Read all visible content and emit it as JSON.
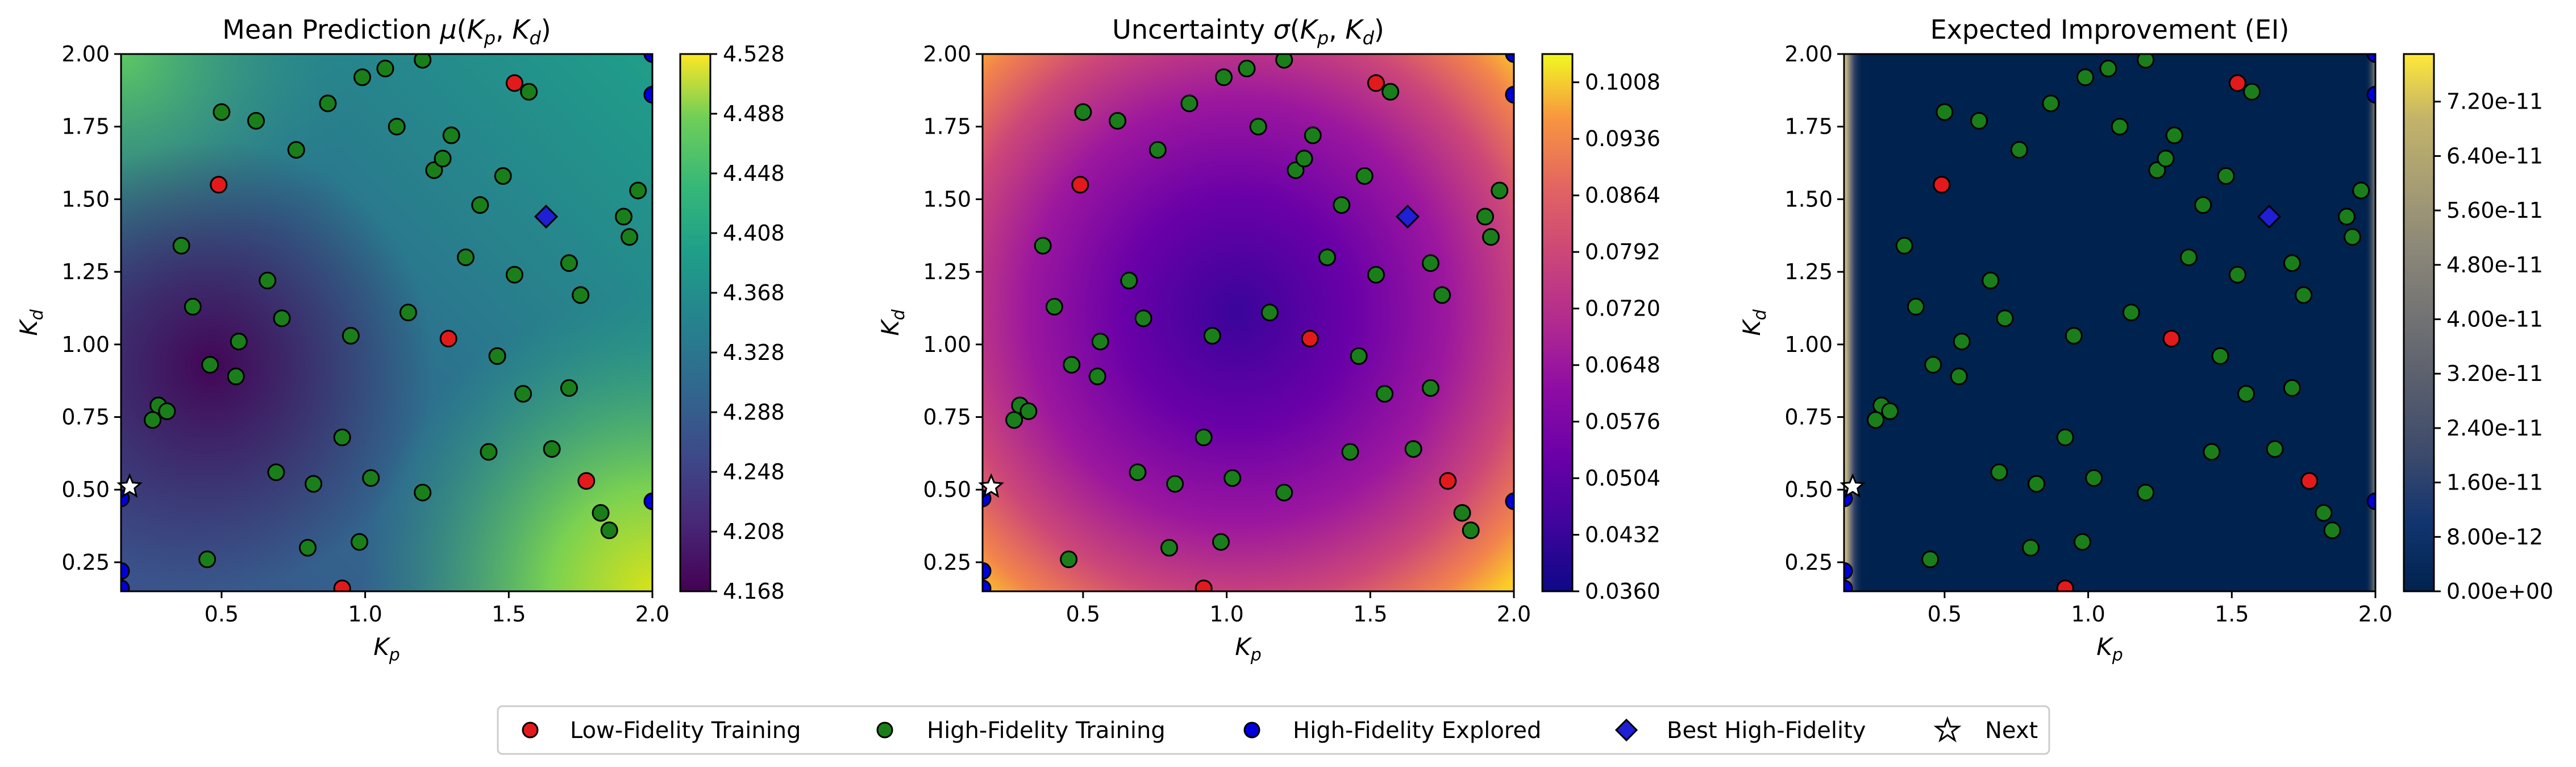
{
  "legend": {
    "items": [
      {
        "label": "Low-Fidelity Training",
        "marker": "circle",
        "color": "#e31a1c"
      },
      {
        "label": "High-Fidelity Training",
        "marker": "circle",
        "color": "#1a7f1a"
      },
      {
        "label": "High-Fidelity Explored",
        "marker": "circle",
        "color": "#0000dd"
      },
      {
        "label": "Best High-Fidelity",
        "marker": "diamond",
        "color": "#1f1fd6"
      },
      {
        "label": "Next",
        "marker": "star",
        "color": "#ffffff"
      }
    ],
    "placement": "bottom-center"
  },
  "chart_data": [
    {
      "type": "heatmap",
      "title": "Mean Prediction μ(K_p, K_d)",
      "title_parts": {
        "prefix": "Mean Prediction ",
        "sym": "μ",
        "open": "(",
        "v1": "K",
        "s1": "p",
        "comma": ", ",
        "v2": "K",
        "s2": "d",
        "close": ")"
      },
      "xlabel": {
        "main": "K",
        "sub": "p"
      },
      "ylabel": {
        "main": "K",
        "sub": "d"
      },
      "xlim": [
        0.15,
        2.0
      ],
      "ylim": [
        0.15,
        2.0
      ],
      "xticks": [
        "0.5",
        "1.0",
        "1.5",
        "2.0"
      ],
      "yticks": [
        "0.25",
        "0.50",
        "0.75",
        "1.00",
        "1.25",
        "1.50",
        "1.75",
        "2.00"
      ],
      "colormap": "viridis",
      "colorbar_ticks": [
        "4.168",
        "4.208",
        "4.248",
        "4.288",
        "4.328",
        "4.368",
        "4.408",
        "4.448",
        "4.488",
        "4.528"
      ],
      "colorbar_range": [
        4.168,
        4.528
      ]
    },
    {
      "type": "heatmap",
      "title": "Uncertainty σ(K_p, K_d)",
      "title_parts": {
        "prefix": "Uncertainty ",
        "sym": "σ",
        "open": "(",
        "v1": "K",
        "s1": "p",
        "comma": ", ",
        "v2": "K",
        "s2": "d",
        "close": ")"
      },
      "xlabel": {
        "main": "K",
        "sub": "p"
      },
      "ylabel": {
        "main": "K",
        "sub": "d"
      },
      "xlim": [
        0.15,
        2.0
      ],
      "ylim": [
        0.15,
        2.0
      ],
      "xticks": [
        "0.5",
        "1.0",
        "1.5",
        "2.0"
      ],
      "yticks": [
        "0.25",
        "0.50",
        "0.75",
        "1.00",
        "1.25",
        "1.50",
        "1.75",
        "2.00"
      ],
      "colormap": "plasma",
      "colorbar_ticks": [
        "0.0360",
        "0.0432",
        "0.0504",
        "0.0576",
        "0.0648",
        "0.0720",
        "0.0792",
        "0.0864",
        "0.0936",
        "0.1008"
      ],
      "colorbar_range": [
        0.036,
        0.1044
      ]
    },
    {
      "type": "heatmap",
      "title": "Expected Improvement (EI)",
      "title_parts": {
        "prefix": "Expected Improvement (EI)",
        "sym": "",
        "open": "",
        "v1": "",
        "s1": "",
        "comma": "",
        "v2": "",
        "s2": "",
        "close": ""
      },
      "xlabel": {
        "main": "K",
        "sub": "p"
      },
      "ylabel": {
        "main": "K",
        "sub": "d"
      },
      "xlim": [
        0.15,
        2.0
      ],
      "ylim": [
        0.15,
        2.0
      ],
      "xticks": [
        "0.5",
        "1.0",
        "1.5",
        "2.0"
      ],
      "yticks": [
        "0.25",
        "0.50",
        "0.75",
        "1.00",
        "1.25",
        "1.50",
        "1.75",
        "2.00"
      ],
      "colormap": "cividis",
      "colorbar_ticks": [
        "0.00e+00",
        "8.00e-12",
        "1.60e-11",
        "2.40e-11",
        "3.20e-11",
        "4.00e-11",
        "4.80e-11",
        "5.60e-11",
        "6.40e-11",
        "7.20e-11"
      ],
      "colorbar_range": [
        0,
        7.9e-11
      ]
    }
  ],
  "points": {
    "low_fidelity": [
      [
        0.49,
        1.55
      ],
      [
        1.52,
        1.9
      ],
      [
        1.29,
        1.02
      ],
      [
        1.77,
        0.53
      ],
      [
        0.92,
        0.16
      ]
    ],
    "high_fidelity": [
      [
        0.5,
        1.8
      ],
      [
        0.62,
        1.77
      ],
      [
        0.76,
        1.67
      ],
      [
        0.87,
        1.83
      ],
      [
        0.99,
        1.92
      ],
      [
        1.07,
        1.95
      ],
      [
        1.2,
        1.98
      ],
      [
        1.11,
        1.75
      ],
      [
        1.24,
        1.6
      ],
      [
        1.27,
        1.64
      ],
      [
        1.3,
        1.72
      ],
      [
        1.35,
        1.3
      ],
      [
        1.4,
        1.48
      ],
      [
        1.48,
        1.58
      ],
      [
        1.52,
        1.24
      ],
      [
        1.57,
        1.87
      ],
      [
        1.55,
        0.83
      ],
      [
        1.46,
        0.96
      ],
      [
        1.43,
        0.63
      ],
      [
        1.65,
        0.64
      ],
      [
        1.71,
        0.85
      ],
      [
        1.71,
        1.28
      ],
      [
        1.75,
        1.17
      ],
      [
        1.9,
        1.44
      ],
      [
        1.92,
        1.37
      ],
      [
        1.95,
        1.53
      ],
      [
        1.82,
        0.42
      ],
      [
        1.85,
        0.36
      ],
      [
        0.36,
        1.34
      ],
      [
        0.4,
        1.13
      ],
      [
        0.46,
        0.93
      ],
      [
        0.56,
        1.01
      ],
      [
        0.55,
        0.89
      ],
      [
        0.66,
        1.22
      ],
      [
        0.71,
        1.09
      ],
      [
        0.28,
        0.79
      ],
      [
        0.31,
        0.77
      ],
      [
        0.26,
        0.74
      ],
      [
        0.69,
        0.56
      ],
      [
        0.82,
        0.52
      ],
      [
        0.92,
        0.68
      ],
      [
        0.95,
        1.03
      ],
      [
        1.02,
        0.54
      ],
      [
        1.15,
        1.11
      ],
      [
        1.2,
        0.49
      ],
      [
        0.8,
        0.3
      ],
      [
        0.98,
        0.32
      ],
      [
        0.45,
        0.26
      ]
    ],
    "high_fidelity_explored": [
      [
        0.15,
        0.22
      ],
      [
        0.15,
        0.47
      ],
      [
        0.15,
        0.16
      ],
      [
        2.0,
        2.0
      ],
      [
        2.0,
        1.86
      ],
      [
        2.0,
        0.46
      ]
    ],
    "best_high_fidelity": [
      [
        1.63,
        1.44
      ]
    ],
    "next": [
      [
        0.18,
        0.51
      ]
    ]
  }
}
